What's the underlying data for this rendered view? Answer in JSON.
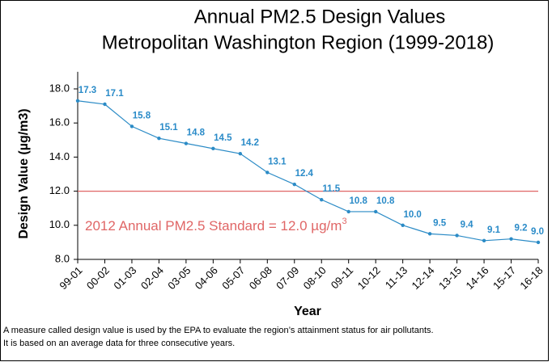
{
  "chart_data": {
    "type": "line",
    "title": [
      "Annual PM2.5 Design Values",
      "Metropolitan Washington Region (1999-2018)"
    ],
    "x_label": "Year",
    "y_label": "Design Value (µg/m3)",
    "categories": [
      "99-01",
      "00-02",
      "01-03",
      "02-04",
      "03-05",
      "04-06",
      "05-07",
      "06-08",
      "07-09",
      "08-10",
      "09-11",
      "10-12",
      "11-13",
      "12-14",
      "13-15",
      "14-16",
      "15-17",
      "16-18"
    ],
    "series": [
      {
        "name": "Design Value",
        "color": "#2b8bc6",
        "values": [
          17.3,
          17.1,
          15.8,
          15.1,
          14.8,
          14.5,
          14.2,
          13.1,
          12.4,
          11.5,
          10.8,
          10.8,
          10.0,
          9.5,
          9.4,
          9.1,
          9.2,
          9.0
        ],
        "value_labels": [
          "17.3",
          "17.1",
          "15.8",
          "15.1",
          "14.8",
          "14.5",
          "14.2",
          "13.1",
          "12.4",
          "11.5",
          "10.8",
          "10.8",
          "10.0",
          "9.5",
          "9.4",
          "9.1",
          "9.2",
          "9.0"
        ]
      }
    ],
    "ylim": [
      8,
      19
    ],
    "yticks": [
      {
        "value": 8,
        "label": "8.0"
      },
      {
        "value": 10,
        "label": "10.0"
      },
      {
        "value": 12,
        "label": "12.0"
      },
      {
        "value": 14,
        "label": "14.0"
      },
      {
        "value": 16,
        "label": "16.0"
      },
      {
        "value": 18,
        "label": "18.0"
      }
    ],
    "reference_line": {
      "value": 12,
      "color": "#e06666",
      "text": "2012 Annual PM2.5 Standard = 12.0 µg/m",
      "superscript": "3"
    },
    "footnote": [
      "A measure called design value is used by the EPA to evaluate the region’s attainment status for air pollutants.",
      "It is based on an average data for three consecutive years."
    ]
  }
}
